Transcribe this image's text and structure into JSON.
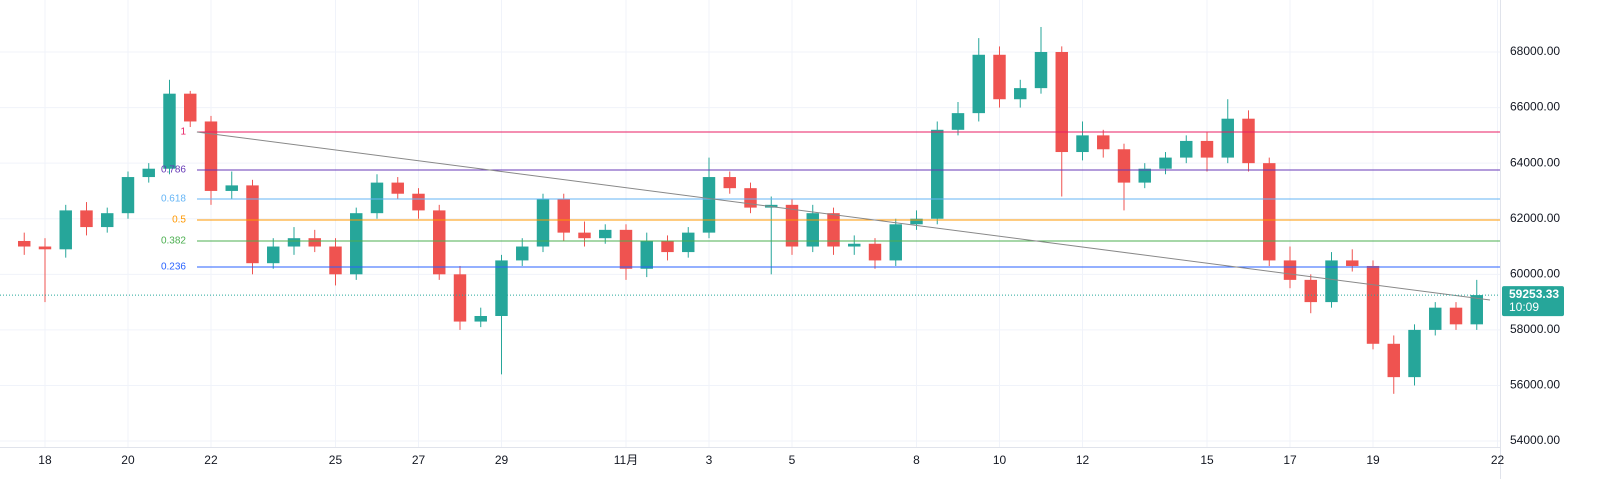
{
  "chart_data": {
    "type": "candlestick",
    "xlim": [
      -1.084,
      35.06
    ],
    "ylim": [
      53786,
      69871
    ],
    "xticks": [
      {
        "value": 0,
        "label": "18"
      },
      {
        "value": 2,
        "label": "20"
      },
      {
        "value": 4,
        "label": "22"
      },
      {
        "value": 7,
        "label": "25"
      },
      {
        "value": 9,
        "label": "27"
      },
      {
        "value": 11,
        "label": "29"
      },
      {
        "value": 14,
        "label": "11月"
      },
      {
        "value": 16,
        "label": "3"
      },
      {
        "value": 18,
        "label": "5"
      },
      {
        "value": 21,
        "label": "8"
      },
      {
        "value": 23,
        "label": "10"
      },
      {
        "value": 25,
        "label": "12"
      },
      {
        "value": 28,
        "label": "15"
      },
      {
        "value": 30,
        "label": "17"
      },
      {
        "value": 32,
        "label": "19"
      },
      {
        "value": 35,
        "label": "22"
      }
    ],
    "yticks": [
      {
        "value": 54000,
        "label": "54000.00"
      },
      {
        "value": 56000,
        "label": "56000.00"
      },
      {
        "value": 58000,
        "label": "58000.00"
      },
      {
        "value": 60000,
        "label": "60000.00"
      },
      {
        "value": 62000,
        "label": "62000.00"
      },
      {
        "value": 64000,
        "label": "64000.00"
      },
      {
        "value": 66000,
        "label": "66000.00"
      },
      {
        "value": 68000,
        "label": "68000.00"
      }
    ],
    "grid": true,
    "up_color": "#26a69a",
    "down_color": "#ef5350",
    "x": [
      -0.5,
      0,
      0.5,
      1,
      1.5,
      2,
      2.5,
      3,
      3.5,
      4,
      4.5,
      5,
      5.5,
      6,
      6.5,
      7,
      7.5,
      8,
      8.5,
      9,
      9.5,
      10,
      10.5,
      11,
      11.5,
      12,
      12.5,
      13,
      13.5,
      14,
      14.5,
      15,
      15.5,
      16,
      16.5,
      17,
      17.5,
      18,
      18.5,
      19,
      19.5,
      20,
      20.5,
      21,
      21.5,
      22,
      22.5,
      23,
      23.5,
      24,
      24.5,
      25,
      25.5,
      26,
      26.5,
      27,
      27.5,
      28,
      28.5,
      29,
      29.5,
      30,
      30.5,
      31,
      31.5,
      32,
      32.5,
      33,
      33.5,
      34,
      34.5
    ],
    "open": [
      61200,
      61000,
      60900,
      62300,
      61700,
      62200,
      63500,
      63800,
      66500,
      65500,
      63000,
      63200,
      60400,
      61000,
      61300,
      61000,
      60000,
      62200,
      63300,
      62900,
      62300,
      60000,
      58300,
      58500,
      60500,
      61000,
      62700,
      61500,
      61300,
      61600,
      60200,
      61200,
      60800,
      61500,
      63500,
      63100,
      62400,
      62500,
      61000,
      62200,
      61000,
      61100,
      60500,
      61800,
      62000,
      65200,
      65800,
      67900,
      66300,
      66700,
      68000,
      64400,
      65000,
      64500,
      63300,
      63800,
      64200,
      64800,
      64200,
      65600,
      64000,
      60500,
      59800,
      59000,
      60500,
      60300,
      57500,
      56300,
      58000,
      58800,
      58200
    ],
    "high": [
      61500,
      61300,
      62500,
      62600,
      62400,
      63700,
      64000,
      67000,
      66600,
      65700,
      63700,
      63400,
      61300,
      61700,
      61600,
      61300,
      62400,
      63600,
      63500,
      63100,
      62500,
      60300,
      58800,
      60700,
      61300,
      62900,
      62900,
      61900,
      61800,
      61800,
      61500,
      61400,
      61700,
      64200,
      63700,
      63300,
      62800,
      62700,
      62500,
      62400,
      61400,
      61300,
      62000,
      62300,
      65500,
      66200,
      68500,
      68200,
      67000,
      68900,
      68200,
      65500,
      65200,
      64700,
      64000,
      64400,
      65000,
      65100,
      66300,
      65900,
      64200,
      61000,
      60000,
      60800,
      60900,
      60500,
      57800,
      58200,
      59000,
      59000,
      59800
    ],
    "low": [
      60700,
      59000,
      60600,
      61400,
      61500,
      62000,
      63300,
      63600,
      65300,
      62500,
      62700,
      60000,
      60200,
      60700,
      60800,
      59600,
      59800,
      62000,
      62700,
      62000,
      59800,
      58000,
      58100,
      56400,
      60300,
      60800,
      61200,
      61000,
      61100,
      59800,
      59900,
      60500,
      60600,
      61300,
      62900,
      62200,
      60000,
      60700,
      60800,
      60700,
      60700,
      60200,
      60300,
      61600,
      61800,
      65000,
      65500,
      66000,
      66000,
      66500,
      62800,
      64100,
      64200,
      62300,
      63100,
      63600,
      64000,
      63700,
      64000,
      63700,
      60300,
      59500,
      58600,
      58800,
      60100,
      57300,
      55700,
      56000,
      57800,
      58000,
      58000
    ],
    "close": [
      61000,
      60900,
      62300,
      61700,
      62200,
      63500,
      63800,
      66500,
      65500,
      63000,
      63200,
      60400,
      61000,
      61300,
      61000,
      60000,
      62200,
      63300,
      62900,
      62300,
      60000,
      58300,
      58500,
      60500,
      61000,
      62700,
      61500,
      61300,
      61600,
      60200,
      61200,
      60800,
      61500,
      63500,
      63100,
      62400,
      62500,
      61000,
      62200,
      61000,
      61100,
      60500,
      61800,
      62000,
      65200,
      65800,
      67900,
      66300,
      66700,
      68000,
      64400,
      65000,
      64500,
      63300,
      63800,
      64200,
      64800,
      64200,
      65600,
      64000,
      60500,
      59800,
      59000,
      60500,
      60300,
      57500,
      56300,
      58000,
      58800,
      58200,
      59253.33
    ],
    "fib_levels": [
      {
        "label": "1",
        "value": 65121,
        "color": "#e91e63"
      },
      {
        "label": "0.786",
        "value": 63754,
        "color": "#673ab7"
      },
      {
        "label": "0.618",
        "value": 62710,
        "color": "#64b5f6"
      },
      {
        "label": "0.5",
        "value": 61955,
        "color": "#ff9800"
      },
      {
        "label": "0.382",
        "value": 61199,
        "color": "#4caf50"
      },
      {
        "label": "0.236",
        "value": 60263,
        "color": "#2962ff"
      }
    ],
    "trend_line": {
      "x": [
        3.66,
        34.82
      ],
      "y": [
        65121,
        59076
      ],
      "color": "#888888"
    },
    "last_price": 59253.33,
    "countdown": "10:09",
    "last_price_color": "#26a69a"
  }
}
